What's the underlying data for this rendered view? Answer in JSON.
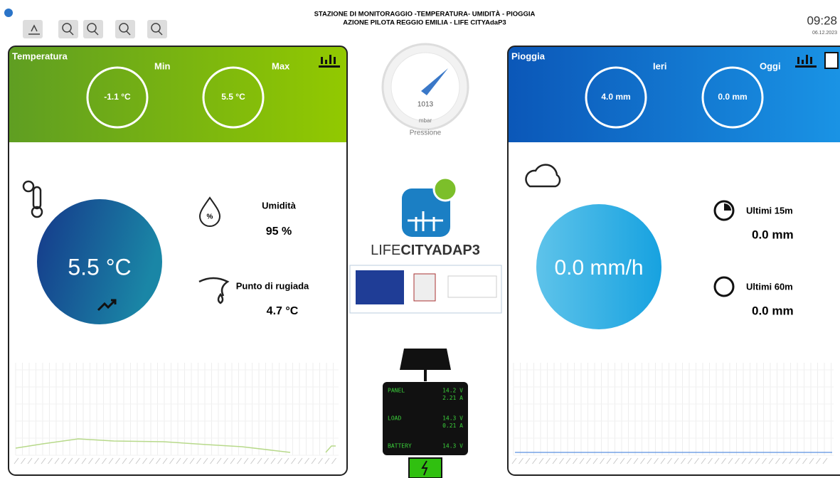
{
  "header": {
    "title_line1": "STAZIONE DI MONITORAGGIO -TEMPERATURA- UMIDITÀ - PIOGGIA",
    "title_line2": "AZIONE PILOTA REGGIO EMILIA - LIFE CITYAdaP3",
    "time": "09:28",
    "date": "06.12.2023"
  },
  "temperature": {
    "label": "Temperatura",
    "min_label": "Min",
    "min": "-1.1 °C",
    "max_label": "Max",
    "max": "5.5 °C",
    "current": "5.5 °C",
    "humidity_label": "Umidità",
    "humidity": "95 %",
    "dew_label": "Punto di rugiada",
    "dew": "4.7 °C"
  },
  "pressure": {
    "value": "1013",
    "unit": "mbar",
    "label": "Pressione"
  },
  "logo": {
    "prefix": "LIFE",
    "name": "CITYADAP3"
  },
  "battery": {
    "rows": [
      {
        "label": "PANEL",
        "value": "14.2 V"
      },
      {
        "value": "2.21 A"
      },
      {
        "label": "LOAD",
        "value": "14.3 V"
      },
      {
        "value": "0.21 A"
      },
      {
        "label": "BATTERY",
        "value": "14.3 V"
      }
    ]
  },
  "rain": {
    "label": "Pioggia",
    "yesterday_label": "Ieri",
    "yesterday": "4.0 mm",
    "today_label": "Oggi",
    "today": "0.0 mm",
    "rate": "0.0 mm/h",
    "last15_label": "Ultimi 15m",
    "last15": "0.0 mm",
    "last60_label": "Ultimi 60m",
    "last60": "0.0 mm"
  }
}
